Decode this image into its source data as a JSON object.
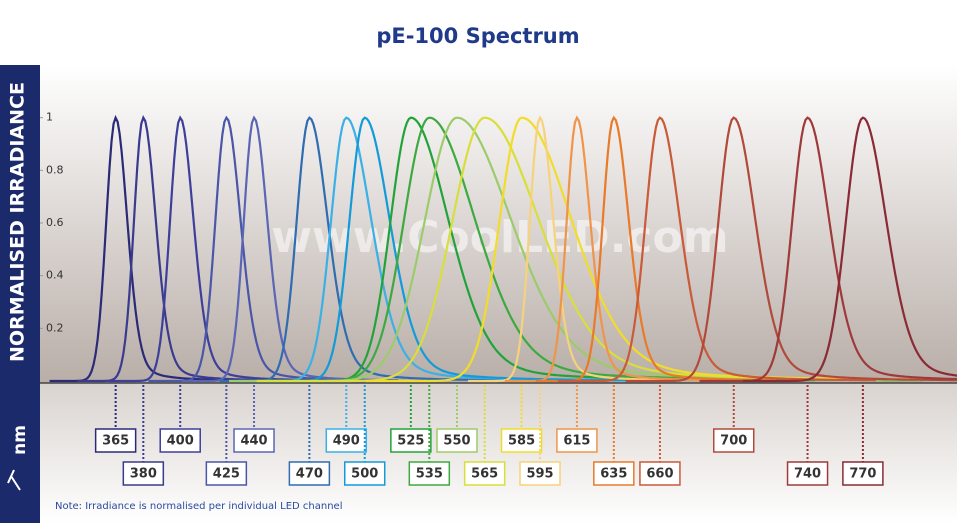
{
  "chart_data": {
    "type": "spectrum",
    "title": "pE-100 Spectrum",
    "y_label": "NORMALISED IRRADIANCE",
    "x_label": "nm",
    "watermark": "www.CoolLED.com",
    "note": "Note: Irradiance is normalised per individual LED channel",
    "xlim": [
      324,
      821
    ],
    "ylim": [
      0,
      1.2
    ],
    "yticks": [
      0.2,
      0.4,
      0.6,
      0.8,
      1
    ],
    "series": [
      {
        "name": "365",
        "color": "#2b2a78",
        "x": [
          365
        ],
        "values": [
          1
        ]
      },
      {
        "name": "380",
        "color": "#3a3a8e",
        "x": [
          380
        ],
        "values": [
          1
        ]
      },
      {
        "name": "400",
        "color": "#3d3f9a",
        "x": [
          400
        ],
        "values": [
          1
        ]
      },
      {
        "name": "425",
        "color": "#4a56a8",
        "x": [
          425
        ],
        "values": [
          1
        ]
      },
      {
        "name": "440",
        "color": "#5a66b4",
        "x": [
          440
        ],
        "values": [
          1
        ]
      },
      {
        "name": "470",
        "color": "#2f6db0",
        "x": [
          470
        ],
        "values": [
          1
        ]
      },
      {
        "name": "490",
        "color": "#3ab0e6",
        "x": [
          490
        ],
        "values": [
          1
        ]
      },
      {
        "name": "500",
        "color": "#139ad9",
        "x": [
          500
        ],
        "values": [
          1
        ]
      },
      {
        "name": "525",
        "color": "#22a33a",
        "x": [
          525
        ],
        "values": [
          1
        ]
      },
      {
        "name": "535",
        "color": "#3daa3f",
        "x": [
          535
        ],
        "values": [
          1
        ]
      },
      {
        "name": "550",
        "color": "#9ccc6a",
        "x": [
          550
        ],
        "values": [
          1
        ]
      },
      {
        "name": "565",
        "color": "#d8de3a",
        "x": [
          565
        ],
        "values": [
          1
        ]
      },
      {
        "name": "585",
        "color": "#f2dc2a",
        "x": [
          585
        ],
        "values": [
          1
        ]
      },
      {
        "name": "595",
        "color": "#f6d27a",
        "x": [
          595
        ],
        "values": [
          1
        ]
      },
      {
        "name": "615",
        "color": "#f0944a",
        "x": [
          615
        ],
        "values": [
          1
        ]
      },
      {
        "name": "635",
        "color": "#e87a2a",
        "x": [
          635
        ],
        "values": [
          1
        ]
      },
      {
        "name": "660",
        "color": "#c95a3a",
        "x": [
          660
        ],
        "values": [
          1
        ]
      },
      {
        "name": "700",
        "color": "#b14a3a",
        "x": [
          700
        ],
        "values": [
          1
        ]
      },
      {
        "name": "740",
        "color": "#9e3a3a",
        "x": [
          740
        ],
        "values": [
          1
        ]
      },
      {
        "name": "770",
        "color": "#8a2a35",
        "x": [
          770
        ],
        "values": [
          1
        ]
      }
    ]
  }
}
